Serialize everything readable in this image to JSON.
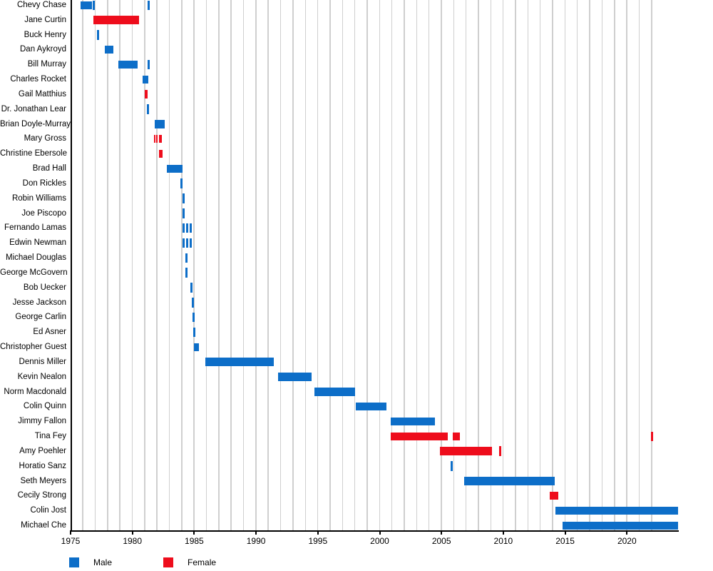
{
  "chart_data": {
    "type": "bar",
    "subtype": "gantt-timeline",
    "grid": true,
    "x_axis": {
      "min": 1975,
      "max": 2024.2,
      "tick_labels": [
        "1975",
        "1980",
        "1985",
        "1990",
        "1995",
        "2000",
        "2005",
        "2010",
        "2015",
        "2020"
      ],
      "tick_start_year": 1975,
      "tick_step_years": 5,
      "gridline_start": 1976,
      "gridline_end": 2022
    },
    "legend": {
      "position": "bottom-left",
      "entries": [
        {
          "label": "Male",
          "color": "#0d6ec8"
        },
        {
          "label": "Female",
          "color": "#ee0d1c"
        }
      ]
    },
    "rows": [
      {
        "name": "Chevy Chase",
        "gender": "Male",
        "segments": [
          [
            1975.85,
            1976.8
          ]
        ],
        "ticks": [
          1976.95,
          1981.35
        ]
      },
      {
        "name": "Jane Curtin",
        "gender": "Female",
        "segments": [
          [
            1976.9,
            1980.6
          ]
        ],
        "ticks": []
      },
      {
        "name": "Buck Henry",
        "gender": "Male",
        "segments": [],
        "ticks": [
          1977.25
        ]
      },
      {
        "name": "Dan Aykroyd",
        "gender": "Male",
        "segments": [
          [
            1977.8,
            1978.5
          ]
        ],
        "ticks": []
      },
      {
        "name": "Bill Murray",
        "gender": "Male",
        "segments": [
          [
            1978.9,
            1980.5
          ]
        ],
        "ticks": [
          1981.35
        ]
      },
      {
        "name": "Charles Rocket",
        "gender": "Male",
        "segments": [
          [
            1980.9,
            1981.35
          ]
        ],
        "ticks": []
      },
      {
        "name": "Gail Matthius",
        "gender": "Female",
        "segments": [
          [
            1981.05,
            1981.3
          ]
        ],
        "ticks": []
      },
      {
        "name": "Dr. Jonathan Lear",
        "gender": "Male",
        "segments": [],
        "ticks": [
          1981.33
        ]
      },
      {
        "name": "Brian Doyle-Murray",
        "gender": "Male",
        "segments": [
          [
            1981.85,
            1982.65
          ]
        ],
        "ticks": []
      },
      {
        "name": "Mary Gross",
        "gender": "Female",
        "segments": [
          [
            1981.8,
            1981.93
          ],
          [
            1981.99,
            1982.12
          ],
          [
            1982.19,
            1982.42
          ]
        ],
        "ticks": []
      },
      {
        "name": "Christine Ebersole",
        "gender": "Female",
        "segments": [
          [
            1982.22,
            1982.51
          ]
        ],
        "ticks": []
      },
      {
        "name": "Brad Hall",
        "gender": "Male",
        "segments": [
          [
            1982.86,
            1984.1
          ]
        ],
        "ticks": []
      },
      {
        "name": "Don Rickles",
        "gender": "Male",
        "segments": [],
        "ticks": [
          1984.05
        ]
      },
      {
        "name": "Robin Williams",
        "gender": "Male",
        "segments": [],
        "ticks": [
          1984.2
        ]
      },
      {
        "name": "Joe Piscopo",
        "gender": "Male",
        "segments": [],
        "ticks": [
          1984.2
        ]
      },
      {
        "name": "Fernando Lamas",
        "gender": "Male",
        "segments": [],
        "ticks": [
          1984.2,
          1984.5,
          1984.8
        ]
      },
      {
        "name": "Edwin Newman",
        "gender": "Male",
        "segments": [],
        "ticks": [
          1984.2,
          1984.5,
          1984.8
        ]
      },
      {
        "name": "Michael Douglas",
        "gender": "Male",
        "segments": [],
        "ticks": [
          1984.4
        ]
      },
      {
        "name": "George McGovern",
        "gender": "Male",
        "segments": [],
        "ticks": [
          1984.45
        ]
      },
      {
        "name": "Bob Uecker",
        "gender": "Male",
        "segments": [],
        "ticks": [
          1984.85
        ]
      },
      {
        "name": "Jesse Jackson",
        "gender": "Male",
        "segments": [],
        "ticks": [
          1984.95
        ]
      },
      {
        "name": "George Carlin",
        "gender": "Male",
        "segments": [],
        "ticks": [
          1985.0
        ]
      },
      {
        "name": "Ed Asner",
        "gender": "Male",
        "segments": [],
        "ticks": [
          1985.05
        ]
      },
      {
        "name": "Christopher Guest",
        "gender": "Male",
        "segments": [
          [
            1985.05,
            1985.45
          ]
        ],
        "ticks": []
      },
      {
        "name": "Dennis Miller",
        "gender": "Male",
        "segments": [
          [
            1985.95,
            1991.5
          ]
        ],
        "ticks": []
      },
      {
        "name": "Kevin Nealon",
        "gender": "Male",
        "segments": [
          [
            1991.85,
            1994.55
          ]
        ],
        "ticks": []
      },
      {
        "name": "Norm Macdonald",
        "gender": "Male",
        "segments": [
          [
            1994.8,
            1998.1
          ]
        ],
        "ticks": []
      },
      {
        "name": "Colin Quinn",
        "gender": "Male",
        "segments": [
          [
            1998.1,
            2000.6
          ]
        ],
        "ticks": []
      },
      {
        "name": "Jimmy Fallon",
        "gender": "Male",
        "segments": [
          [
            2000.95,
            2004.55
          ]
        ],
        "ticks": []
      },
      {
        "name": "Tina Fey",
        "gender": "Female",
        "segments": [
          [
            2000.95,
            2005.55
          ],
          [
            2005.95,
            2006.55
          ]
        ],
        "ticks": [
          2022.1
        ]
      },
      {
        "name": "Amy Poehler",
        "gender": "Female",
        "segments": [
          [
            2004.95,
            2009.15
          ]
        ],
        "ticks": [
          2009.8
        ]
      },
      {
        "name": "Horatio Sanz",
        "gender": "Male",
        "segments": [],
        "ticks": [
          2005.9
        ]
      },
      {
        "name": "Seth Meyers",
        "gender": "Male",
        "segments": [
          [
            2006.9,
            2014.25
          ]
        ],
        "ticks": []
      },
      {
        "name": "Cecily Strong",
        "gender": "Female",
        "segments": [
          [
            2013.8,
            2014.5
          ]
        ],
        "ticks": []
      },
      {
        "name": "Colin Jost",
        "gender": "Male",
        "segments": [
          [
            2014.25,
            2024.2
          ]
        ],
        "ticks": []
      },
      {
        "name": "Michael Che",
        "gender": "Male",
        "segments": [
          [
            2014.85,
            2024.2
          ]
        ],
        "ticks": []
      }
    ]
  },
  "colors": {
    "male": "#0d6ec8",
    "female": "#ee0d1c",
    "gridline": "#cfcfcf",
    "axis": "#000000",
    "background": "#ffffff"
  }
}
